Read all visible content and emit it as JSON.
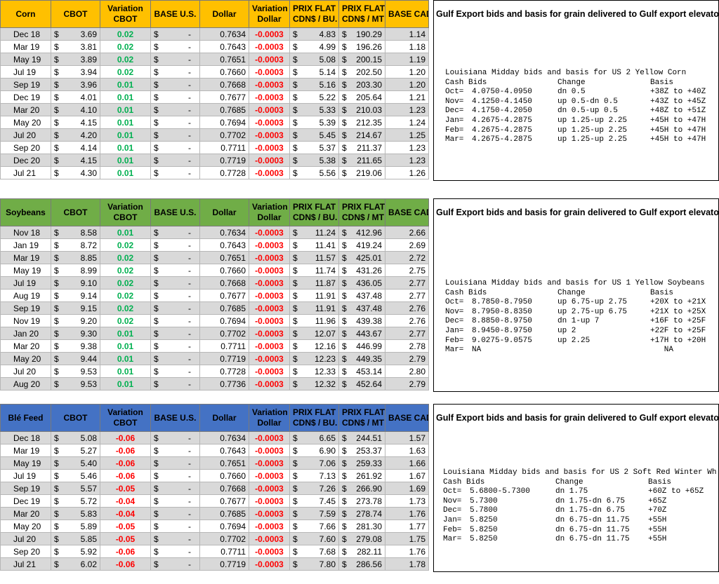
{
  "headers": {
    "cbot": "CBOT",
    "variation_cbot": [
      "Variation",
      "CBOT"
    ],
    "base_us": "BASE U.S.",
    "dollar": "Dollar",
    "variation_dollar": [
      "Variation",
      "Dollar"
    ],
    "prix_flat_bu": [
      "PRIX FLAT",
      "CDN$ / BU."
    ],
    "prix_flat_mt": [
      "PRIX FLAT",
      "CDN$ / MT"
    ],
    "base_cad": "BASE CAD"
  },
  "sections": [
    {
      "name": "Corn",
      "header_color": "#ffc000",
      "rows": [
        [
          "Dec 18",
          "3.69",
          "0.02",
          "-",
          "0.7634",
          "-0.0003",
          "4.83",
          "190.29",
          "1.14"
        ],
        [
          "Mar 19",
          "3.81",
          "0.02",
          "-",
          "0.7643",
          "-0.0003",
          "4.99",
          "196.26",
          "1.18"
        ],
        [
          "May 19",
          "3.89",
          "0.02",
          "-",
          "0.7651",
          "-0.0003",
          "5.08",
          "200.15",
          "1.19"
        ],
        [
          "Jul 19",
          "3.94",
          "0.02",
          "-",
          "0.7660",
          "-0.0003",
          "5.14",
          "202.50",
          "1.20"
        ],
        [
          "Sep 19",
          "3.96",
          "0.01",
          "-",
          "0.7668",
          "-0.0003",
          "5.16",
          "203.30",
          "1.20"
        ],
        [
          "Dec 19",
          "4.01",
          "0.01",
          "-",
          "0.7677",
          "-0.0003",
          "5.22",
          "205.64",
          "1.21"
        ],
        [
          "Mar 20",
          "4.10",
          "0.01",
          "-",
          "0.7685",
          "-0.0003",
          "5.33",
          "210.03",
          "1.23"
        ],
        [
          "May 20",
          "4.15",
          "0.01",
          "-",
          "0.7694",
          "-0.0003",
          "5.39",
          "212.35",
          "1.24"
        ],
        [
          "Jul 20",
          "4.20",
          "0.01",
          "-",
          "0.7702",
          "-0.0003",
          "5.45",
          "214.67",
          "1.25"
        ],
        [
          "Sep 20",
          "4.14",
          "0.01",
          "-",
          "0.7711",
          "-0.0003",
          "5.37",
          "211.37",
          "1.23"
        ],
        [
          "Dec 20",
          "4.15",
          "0.01",
          "-",
          "0.7719",
          "-0.0003",
          "5.38",
          "211.65",
          "1.23"
        ],
        [
          "Jul 21",
          "4.30",
          "0.01",
          "-",
          "0.7728",
          "-0.0003",
          "5.56",
          "219.06",
          "1.26"
        ]
      ],
      "panel_title": "Gulf Export bids and basis for grain delivered to Gulf export elevators",
      "panel_heading": "Louisiana Midday bids and basis for US 2 Yellow Corn",
      "panel_cols": [
        "Cash Bids",
        "Change",
        "Basis"
      ],
      "panel_rows": [
        [
          "Oct=",
          "4.0750-4.0950",
          "dn 0.5",
          "+38Z to +40Z"
        ],
        [
          "Nov=",
          "4.1250-4.1450",
          "up 0.5-dn 0.5",
          "+43Z to +45Z"
        ],
        [
          "Dec=",
          "4.1750-4.2050",
          "dn 0.5-up 0.5",
          "+48Z to +51Z"
        ],
        [
          "Jan=",
          "4.2675-4.2875",
          "up 1.25-up 2.25",
          "+45H to +47H"
        ],
        [
          "Feb=",
          "4.2675-4.2875",
          "up 1.25-up 2.25",
          "+45H to +47H"
        ],
        [
          "Mar=",
          "4.2675-4.2875",
          "up 1.25-up 2.25",
          "+45H to +47H"
        ]
      ]
    },
    {
      "name": "Soybeans",
      "header_color": "#70ad47",
      "rows": [
        [
          "Nov 18",
          "8.58",
          "0.01",
          "-",
          "0.7634",
          "-0.0003",
          "11.24",
          "412.96",
          "2.66"
        ],
        [
          "Jan 19",
          "8.72",
          "0.02",
          "-",
          "0.7643",
          "-0.0003",
          "11.41",
          "419.24",
          "2.69"
        ],
        [
          "Mar 19",
          "8.85",
          "0.02",
          "-",
          "0.7651",
          "-0.0003",
          "11.57",
          "425.01",
          "2.72"
        ],
        [
          "May 19",
          "8.99",
          "0.02",
          "-",
          "0.7660",
          "-0.0003",
          "11.74",
          "431.26",
          "2.75"
        ],
        [
          "Jul 19",
          "9.10",
          "0.02",
          "-",
          "0.7668",
          "-0.0003",
          "11.87",
          "436.05",
          "2.77"
        ],
        [
          "Aug 19",
          "9.14",
          "0.02",
          "-",
          "0.7677",
          "-0.0003",
          "11.91",
          "437.48",
          "2.77"
        ],
        [
          "Sep 19",
          "9.15",
          "0.02",
          "-",
          "0.7685",
          "-0.0003",
          "11.91",
          "437.48",
          "2.76"
        ],
        [
          "Nov 19",
          "9.20",
          "0.02",
          "-",
          "0.7694",
          "-0.0003",
          "11.96",
          "439.38",
          "2.76"
        ],
        [
          "Jan 20",
          "9.30",
          "0.01",
          "-",
          "0.7702",
          "-0.0003",
          "12.07",
          "443.67",
          "2.77"
        ],
        [
          "Mar 20",
          "9.38",
          "0.01",
          "-",
          "0.7711",
          "-0.0003",
          "12.16",
          "446.99",
          "2.78"
        ],
        [
          "May 20",
          "9.44",
          "0.01",
          "-",
          "0.7719",
          "-0.0003",
          "12.23",
          "449.35",
          "2.79"
        ],
        [
          "Jul 20",
          "9.53",
          "0.01",
          "-",
          "0.7728",
          "-0.0003",
          "12.33",
          "453.14",
          "2.80"
        ],
        [
          "Aug 20",
          "9.53",
          "0.01",
          "-",
          "0.7736",
          "-0.0003",
          "12.32",
          "452.64",
          "2.79"
        ]
      ],
      "panel_title": "Gulf Export bids and basis for grain delivered to Gulf export elevators",
      "panel_heading": "Louisiana Midday bids and basis for US 1 Yellow Soybeans",
      "panel_cols": [
        "Cash Bids",
        "Change",
        "Basis"
      ],
      "panel_rows": [
        [
          "Oct=",
          "8.7850-8.7950",
          "up 6.75-up 2.75",
          "+20X to +21X"
        ],
        [
          "Nov=",
          "8.7950-8.8350",
          "up 2.75-up 6.75",
          "+21X to +25X"
        ],
        [
          "Dec=",
          "8.8850-8.9750",
          "dn 1-up 7",
          "+16F to +25F"
        ],
        [
          "Jan=",
          "8.9450-8.9750",
          "up 2",
          "+22F to +25F"
        ],
        [
          "Feb=",
          "9.0275-9.0575",
          "up 2.25",
          "+17H to +20H"
        ],
        [
          "Mar=",
          "NA",
          "",
          "   NA"
        ]
      ]
    },
    {
      "name": "Blé Feed",
      "header_color": "#4472c4",
      "rows": [
        [
          "Dec 18",
          "5.08",
          "-0.06",
          "-",
          "0.7634",
          "-0.0003",
          "6.65",
          "244.51",
          "1.57"
        ],
        [
          "Mar 19",
          "5.27",
          "-0.06",
          "-",
          "0.7643",
          "-0.0003",
          "6.90",
          "253.37",
          "1.63"
        ],
        [
          "May 19",
          "5.40",
          "-0.06",
          "-",
          "0.7651",
          "-0.0003",
          "7.06",
          "259.33",
          "1.66"
        ],
        [
          "Jul 19",
          "5.46",
          "-0.06",
          "-",
          "0.7660",
          "-0.0003",
          "7.13",
          "261.92",
          "1.67"
        ],
        [
          "Sep 19",
          "5.57",
          "-0.05",
          "-",
          "0.7668",
          "-0.0003",
          "7.26",
          "266.90",
          "1.69"
        ],
        [
          "Dec 19",
          "5.72",
          "-0.04",
          "-",
          "0.7677",
          "-0.0003",
          "7.45",
          "273.78",
          "1.73"
        ],
        [
          "Mar 20",
          "5.83",
          "-0.04",
          "-",
          "0.7685",
          "-0.0003",
          "7.59",
          "278.74",
          "1.76"
        ],
        [
          "May 20",
          "5.89",
          "-0.05",
          "-",
          "0.7694",
          "-0.0003",
          "7.66",
          "281.30",
          "1.77"
        ],
        [
          "Jul 20",
          "5.85",
          "-0.05",
          "-",
          "0.7702",
          "-0.0003",
          "7.60",
          "279.08",
          "1.75"
        ],
        [
          "Sep 20",
          "5.92",
          "-0.06",
          "-",
          "0.7711",
          "-0.0003",
          "7.68",
          "282.11",
          "1.76"
        ],
        [
          "Jul 21",
          "6.02",
          "-0.06",
          "-",
          "0.7719",
          "-0.0003",
          "7.80",
          "286.56",
          "1.78"
        ]
      ],
      "panel_title": "Gulf Export bids and basis for grain delivered to Gulf export elevators",
      "panel_heading": "Louisiana Midday bids and basis for US 2 Soft Red Winter Wh",
      "panel_cols": [
        "Cash Bids",
        "Change",
        "Basis"
      ],
      "panel_rows": [
        [
          "Oct=",
          "5.6800-5.7300",
          "dn 1.75",
          "+60Z to +65Z"
        ],
        [
          "Nov=",
          "5.7300",
          "dn 1.75-dn 6.75",
          "+65Z"
        ],
        [
          "Dec=",
          "5.7800",
          "dn 1.75-dn 6.75",
          "+70Z"
        ],
        [
          "Jan=",
          "5.8250",
          "dn 6.75-dn 11.75",
          "+55H"
        ],
        [
          "Feb=",
          "5.8250",
          "dn 6.75-dn 11.75",
          "+55H"
        ],
        [
          "Mar=",
          "5.8250",
          "dn 6.75-dn 11.75",
          "+55H"
        ]
      ]
    }
  ],
  "currency_symbol": "$",
  "colors": {
    "positive": "#00b050",
    "negative": "#ff0000",
    "band": "#d9d9d9"
  }
}
